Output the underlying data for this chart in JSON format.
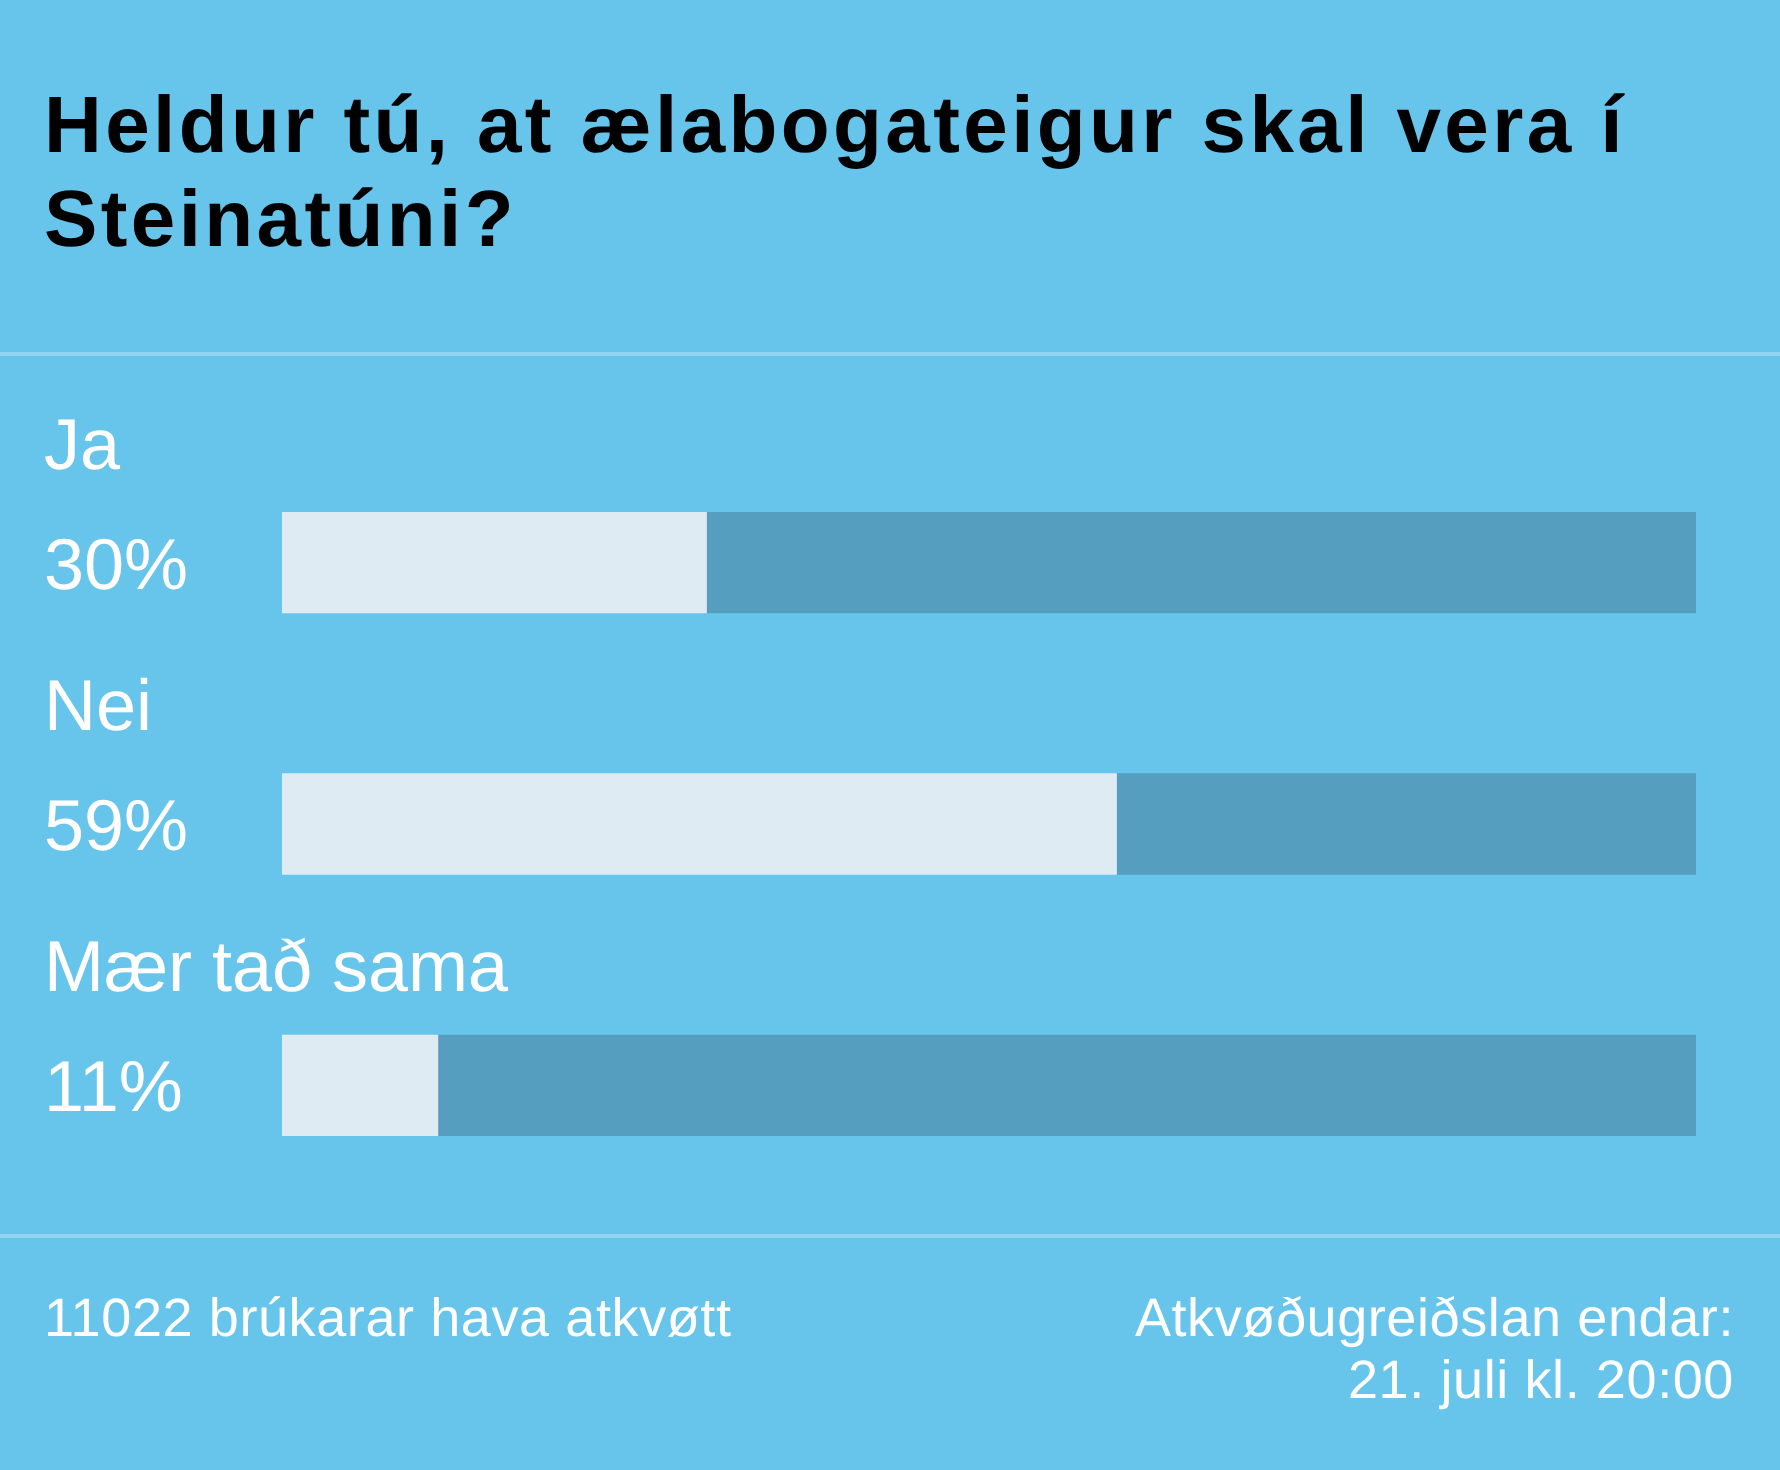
{
  "chart_data": {
    "type": "bar",
    "orientation": "horizontal",
    "stacked": true,
    "title": "Heldur tú, at ælabogateigur skal vera í Steinatúni?",
    "categories": [
      "Ja",
      "Nei",
      "Mær tað sama"
    ],
    "series": [
      {
        "color": "#deebf3",
        "values": [
          30,
          59,
          11
        ],
        "value_labels": [
          "30%",
          "59%",
          "11%"
        ]
      },
      {
        "color": "#559ebf",
        "values": [
          70,
          41,
          89
        ]
      }
    ],
    "xlim": [
      0,
      100
    ],
    "tick_labels": "y",
    "annotations": [
      "11022 brúkarar hava atkvøtt",
      "Atkvøðugreiðslan endar: 21. juli kl. 20:00"
    ]
  }
}
